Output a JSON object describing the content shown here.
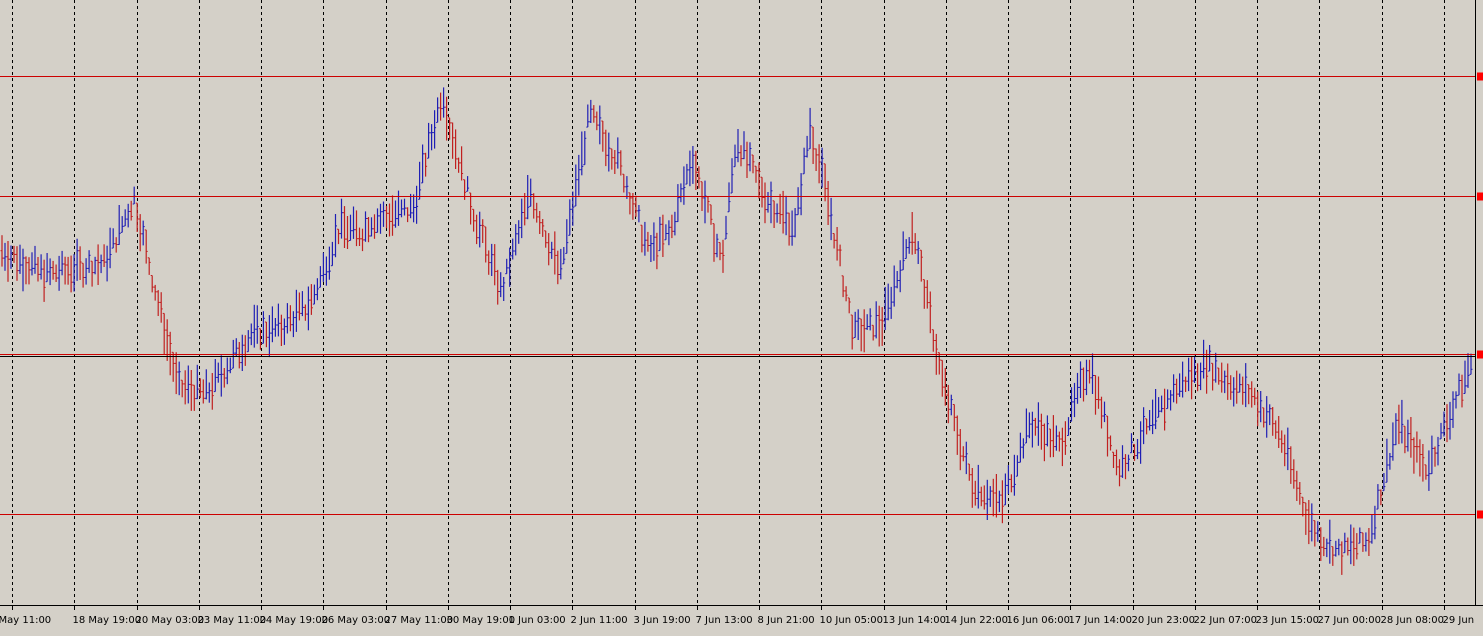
{
  "chart_data": {
    "type": "bar",
    "subtype": "ohlc-bars",
    "title": "",
    "xlabel": "",
    "ylabel": "",
    "grid": "vertical-dashed",
    "ylim": [
      0,
      100
    ],
    "x_ticks": [
      "May 11:00",
      "18 May 19:00",
      "20 May 03:00",
      "23 May 11:00",
      "24 May 19:00",
      "26 May 03:00",
      "27 May 11:00",
      "30 May 19:00",
      "1 Jun 03:00",
      "2 Jun 11:00",
      "3 Jun 19:00",
      "7 Jun 13:00",
      "8 Jun 21:00",
      "10 Jun 05:00",
      "13 Jun 14:00",
      "14 Jun 22:00",
      "16 Jun 06:00",
      "17 Jun 14:00",
      "20 Jun 23:00",
      "22 Jun 07:00",
      "23 Jun 15:00",
      "27 Jun 00:00",
      "28 Jun 08:00",
      "29 Jun"
    ],
    "horizontal_levels": [
      {
        "value": 88.5,
        "color": "#cc0000"
      },
      {
        "value": 68.3,
        "color": "#cc0000"
      },
      {
        "value": 41.5,
        "color": "#cc0000",
        "double": true
      },
      {
        "value": 14.6,
        "color": "#cc0000"
      }
    ],
    "profile_x": [
      0,
      0.03,
      0.07,
      0.09,
      0.1,
      0.12,
      0.14,
      0.17,
      0.19,
      0.21,
      0.23,
      0.245,
      0.25,
      0.28,
      0.3,
      0.305,
      0.32,
      0.34,
      0.36,
      0.38,
      0.4,
      0.42,
      0.44,
      0.455,
      0.47,
      0.49,
      0.5,
      0.52,
      0.54,
      0.55,
      0.56,
      0.58,
      0.6,
      0.62,
      0.64,
      0.66,
      0.68,
      0.7,
      0.72,
      0.74,
      0.76,
      0.8,
      0.82,
      0.84,
      0.85,
      0.87,
      0.89,
      0.9,
      0.91,
      0.93,
      0.95,
      0.97,
      1.0
    ],
    "profile_y": [
      59,
      55,
      57,
      68,
      57,
      36,
      35,
      45,
      46,
      50,
      63,
      62,
      64,
      66,
      86,
      80,
      66,
      52,
      69,
      55,
      82,
      74,
      59,
      62,
      75,
      57,
      78,
      68,
      63,
      80,
      70,
      45,
      47,
      63,
      37,
      20,
      16,
      30,
      26,
      40,
      22,
      36,
      40,
      36,
      35,
      28,
      13,
      10,
      8,
      10,
      30,
      22,
      40
    ],
    "bullish_color": "#1f1fb4",
    "bearish_color": "#c02020",
    "grid_color": "#000000",
    "level_marker_color": "#ff0000"
  }
}
